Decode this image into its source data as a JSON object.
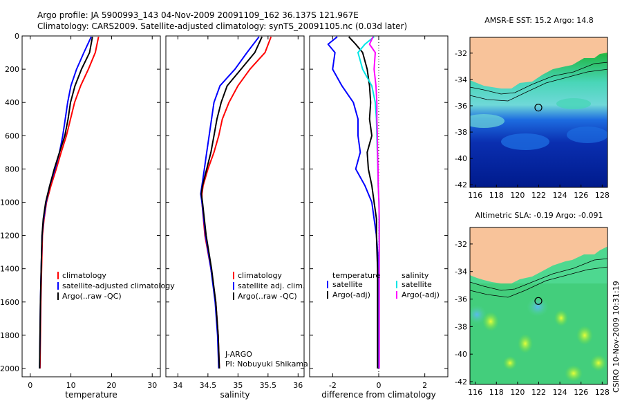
{
  "header": {
    "line1": "Argo profile: JA 5900993_143 04-Nov-2009 20091109_162 36.137S 121.967E",
    "line2": "Climatology: CARS2009. Satellite-adjusted climatology: synTS_20091105.nc (0.03d later)"
  },
  "side_text": "CSIRO 10-Nov-2009 10:31:19",
  "colors": {
    "climatology": "#ff0000",
    "satellite": "#0000ff",
    "argo": "#000000",
    "sal_satellite": "#00e5e5",
    "sal_argo": "#ff00ff",
    "land": "#f8c39a"
  },
  "chart_data": [
    {
      "type": "line",
      "xlabel": "temperature",
      "xlim": [
        -2,
        32
      ],
      "xticks": [
        "0",
        "10",
        "20",
        "30"
      ],
      "ylim": [
        2050,
        0
      ],
      "yticks": [
        "0",
        "200",
        "400",
        "600",
        "800",
        "1000",
        "1200",
        "1400",
        "1600",
        "1800",
        "2000"
      ],
      "legend": [
        "climatology",
        "satellite-adjusted climatology",
        "Argo(..raw -QC)"
      ],
      "series": [
        {
          "name": "climatology",
          "depth": [
            5,
            100,
            200,
            300,
            400,
            500,
            600,
            700,
            800,
            900,
            1000,
            1100,
            1200,
            1400,
            1600,
            1800,
            2000
          ],
          "values": [
            16.8,
            16.0,
            14.3,
            12.4,
            10.9,
            9.9,
            8.9,
            7.6,
            6.4,
            5.1,
            4.0,
            3.4,
            3.0,
            2.8,
            2.6,
            2.5,
            2.4
          ]
        },
        {
          "name": "satellite-adjusted climatology",
          "depth": [
            5,
            100,
            200,
            300,
            400,
            500,
            600,
            700,
            800,
            900,
            1000,
            1100,
            1200,
            1400,
            1600,
            1800,
            2000
          ],
          "values": [
            15.0,
            13.2,
            11.4,
            10.0,
            9.2,
            8.6,
            8.0,
            7.2,
            6.1,
            4.8,
            3.9,
            3.3,
            2.9,
            2.7,
            2.5,
            2.4,
            2.3
          ]
        },
        {
          "name": "Argo(..raw -QC)",
          "depth": [
            5,
            100,
            200,
            300,
            400,
            500,
            600,
            700,
            800,
            900,
            1000,
            1100,
            1200,
            1400,
            1600,
            1800,
            2000
          ],
          "values": [
            15.3,
            14.6,
            12.6,
            11.0,
            9.9,
            9.3,
            8.5,
            7.2,
            5.9,
            4.8,
            3.8,
            3.2,
            2.9,
            2.7,
            2.5,
            2.4,
            2.3
          ]
        }
      ]
    },
    {
      "type": "line",
      "xlabel": "salinity",
      "xlim": [
        33.8,
        36.1
      ],
      "xticks": [
        "34",
        "34.5",
        "35",
        "35.5",
        "36"
      ],
      "ylim": [
        2050,
        0
      ],
      "legend": [
        "climatology",
        "satellite adj. clim.",
        "Argo(..raw -QC)"
      ],
      "annotation": [
        "J-ARGO",
        "PI: Nobuyuki Shikama"
      ],
      "series": [
        {
          "name": "climatology",
          "depth": [
            5,
            100,
            200,
            300,
            400,
            500,
            600,
            700,
            800,
            900,
            950,
            1000,
            1200,
            1400,
            1600,
            1800,
            2000
          ],
          "values": [
            35.55,
            35.45,
            35.2,
            35.0,
            34.85,
            34.74,
            34.68,
            34.6,
            34.5,
            34.42,
            34.4,
            34.4,
            34.45,
            34.55,
            34.63,
            34.67,
            34.69
          ]
        },
        {
          "name": "satellite adj. clim.",
          "depth": [
            5,
            100,
            200,
            300,
            400,
            500,
            600,
            700,
            800,
            900,
            950,
            1000,
            1200,
            1400,
            1600,
            1800,
            2000
          ],
          "values": [
            35.35,
            35.15,
            34.95,
            34.7,
            34.6,
            34.56,
            34.52,
            34.48,
            34.44,
            34.4,
            34.38,
            34.4,
            34.46,
            34.55,
            34.62,
            34.66,
            34.68
          ]
        },
        {
          "name": "Argo(..raw -QC)",
          "depth": [
            5,
            100,
            200,
            300,
            400,
            500,
            600,
            700,
            800,
            900,
            950,
            1000,
            1200,
            1400,
            1600,
            1800,
            2000
          ],
          "values": [
            35.4,
            35.28,
            35.05,
            34.82,
            34.72,
            34.65,
            34.6,
            34.55,
            34.48,
            34.41,
            34.39,
            34.41,
            34.47,
            34.56,
            34.63,
            34.67,
            34.69
          ]
        }
      ]
    },
    {
      "type": "line",
      "xlabel": "difference from climatology",
      "xlim": [
        -3,
        3
      ],
      "xticks": [
        "-2",
        "0",
        "2"
      ],
      "ylim": [
        2050,
        0
      ],
      "legend_left": [
        "temperature",
        "satellite",
        "Argo(-adj)"
      ],
      "legend_right": [
        "salinity",
        "satellite",
        "Argo(-adj)"
      ],
      "series": [
        {
          "name": "temperature satellite",
          "depth": [
            5,
            50,
            100,
            200,
            300,
            400,
            500,
            600,
            700,
            800,
            900,
            1000,
            1100,
            1200,
            1400,
            1600,
            1800,
            2000
          ],
          "values": [
            -1.8,
            -2.2,
            -1.9,
            -2.0,
            -1.6,
            -1.1,
            -0.9,
            -0.9,
            -0.8,
            -1.0,
            -0.6,
            -0.3,
            -0.2,
            -0.1,
            0,
            0,
            0,
            0
          ]
        },
        {
          "name": "temperature Argo(-adj)",
          "depth": [
            5,
            50,
            100,
            200,
            300,
            400,
            500,
            600,
            700,
            800,
            900,
            1000,
            1100,
            1200,
            1400,
            1600,
            1800,
            2000
          ],
          "values": [
            -1.3,
            -1.0,
            -0.7,
            -0.5,
            -0.4,
            -0.35,
            -0.4,
            -0.3,
            -0.5,
            -0.45,
            -0.3,
            -0.2,
            -0.1,
            -0.1,
            -0.05,
            -0.05,
            -0.05,
            -0.05
          ]
        },
        {
          "name": "salinity satellite",
          "depth": [
            5,
            50,
            100,
            200,
            300,
            400,
            500,
            600,
            700,
            800,
            900,
            1000,
            1100,
            1200,
            1400,
            1600,
            1800,
            2000
          ],
          "values": [
            -0.2,
            -0.6,
            -0.9,
            -0.7,
            -0.3,
            -0.15,
            -0.1,
            -0.08,
            -0.06,
            -0.04,
            -0.02,
            0.01,
            0.02,
            0.02,
            0.02,
            0.02,
            0.02,
            0.02
          ]
        },
        {
          "name": "salinity Argo(-adj)",
          "depth": [
            5,
            50,
            100,
            200,
            300,
            400,
            500,
            600,
            700,
            800,
            900,
            1000,
            1100,
            1200,
            1400,
            1600,
            1800,
            2000
          ],
          "values": [
            -0.25,
            -0.4,
            -0.15,
            -0.2,
            -0.12,
            -0.08,
            -0.08,
            -0.06,
            -0.05,
            -0.03,
            -0.02,
            0.01,
            0.02,
            0.02,
            0.02,
            0.02,
            0.02,
            0.02
          ]
        }
      ]
    },
    {
      "type": "heatmap",
      "title": "AMSR-E SST: 15.2 Argo: 14.8",
      "xticks": [
        "116",
        "118",
        "120",
        "122",
        "124",
        "126",
        "128"
      ],
      "yticks": [
        "-32",
        "-34",
        "-36",
        "-38",
        "-40",
        "-42"
      ],
      "xlim": [
        115.5,
        128.5
      ],
      "ylim": [
        -42.2,
        -30.8
      ],
      "marker": {
        "lon": 121.967,
        "lat": -36.137
      }
    },
    {
      "type": "heatmap",
      "title": "Altimetric SLA: -0.19 Argo: -0.091",
      "xticks": [
        "116",
        "118",
        "120",
        "122",
        "124",
        "126",
        "128"
      ],
      "yticks": [
        "-32",
        "-34",
        "-36",
        "-38",
        "-40",
        "-42"
      ],
      "xlim": [
        115.5,
        128.5
      ],
      "ylim": [
        -42.2,
        -30.8
      ],
      "marker": {
        "lon": 121.967,
        "lat": -36.137
      }
    }
  ]
}
